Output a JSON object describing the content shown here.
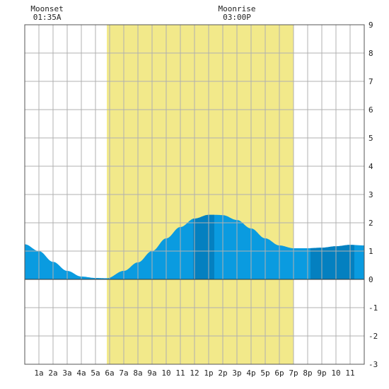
{
  "chart_data": {
    "type": "area",
    "title": "",
    "xlabel": "",
    "ylabel": "",
    "xlim": [
      0,
      24
    ],
    "ylim": [
      -3,
      9
    ],
    "grid": true,
    "x_tick_labels": [
      "1a",
      "2a",
      "3a",
      "4a",
      "5a",
      "6a",
      "7a",
      "8a",
      "9a",
      "10",
      "11",
      "12",
      "1p",
      "2p",
      "3p",
      "4p",
      "5p",
      "6p",
      "7p",
      "8p",
      "9p",
      "10",
      "11"
    ],
    "y_tick_labels": [
      "-3",
      "-2",
      "-1",
      "0",
      "1",
      "2",
      "3",
      "4",
      "5",
      "6",
      "7",
      "8",
      "9"
    ],
    "daylight": {
      "start": 5.8,
      "end": 19.0,
      "color": "#f2e98a"
    },
    "colors": {
      "tide_light": "#0a9be0",
      "tide_dark": "#0480c0",
      "grid": "#b0b0b0",
      "frame": "#555555"
    },
    "annotations": [
      {
        "label": "Moonset",
        "time": "01:35A",
        "x": 1.58
      },
      {
        "label": "Moonrise",
        "time": "03:00P",
        "x": 15.0
      }
    ],
    "series": [
      {
        "x": [
          0,
          1,
          2,
          3,
          4,
          5,
          5.8,
          7,
          8,
          9,
          10,
          11,
          12,
          13,
          13.6,
          14,
          15,
          16,
          17,
          18,
          19,
          20,
          21,
          22,
          23,
          24
        ],
        "values": [
          1.24,
          1.0,
          0.62,
          0.3,
          0.1,
          0.05,
          0.04,
          0.3,
          0.6,
          1.0,
          1.45,
          1.85,
          2.15,
          2.28,
          2.28,
          2.27,
          2.1,
          1.8,
          1.45,
          1.2,
          1.1,
          1.1,
          1.12,
          1.17,
          1.22,
          1.2
        ]
      }
    ],
    "dark_bands": [
      [
        11.9,
        13.4
      ],
      [
        20.2,
        23.3
      ]
    ]
  }
}
